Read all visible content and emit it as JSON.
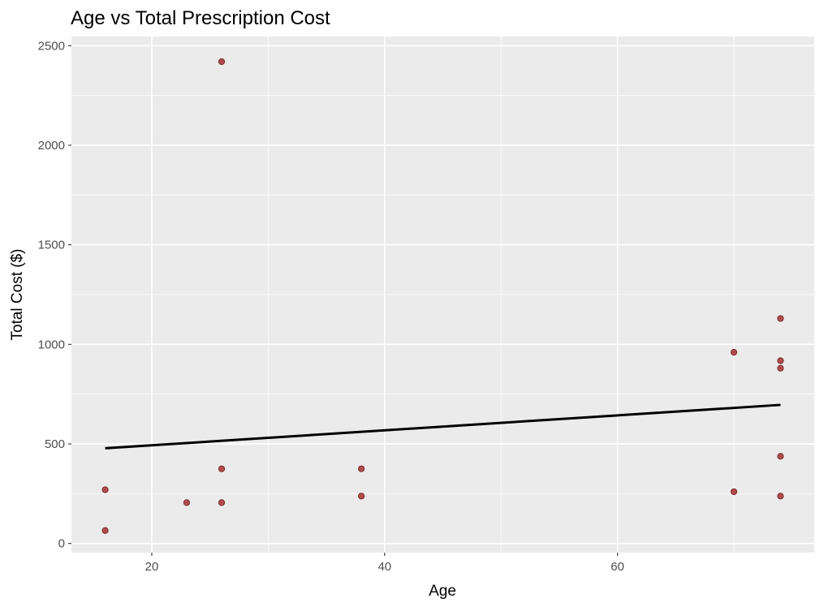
{
  "chart_data": {
    "type": "scatter",
    "title": "Age vs Total Prescription Cost",
    "xlabel": "Age",
    "ylabel": "Total Cost ($)",
    "xlim": [
      13.1,
      76.9
    ],
    "ylim": [
      -46,
      2546
    ],
    "xticks": [
      20,
      40,
      60
    ],
    "yticks": [
      0,
      500,
      1000,
      1500,
      2000,
      2500
    ],
    "grid": true,
    "points": [
      {
        "x": 16,
        "y": 65
      },
      {
        "x": 16,
        "y": 270
      },
      {
        "x": 23,
        "y": 205
      },
      {
        "x": 26,
        "y": 205
      },
      {
        "x": 26,
        "y": 375
      },
      {
        "x": 26,
        "y": 2420
      },
      {
        "x": 38,
        "y": 238
      },
      {
        "x": 38,
        "y": 375
      },
      {
        "x": 70,
        "y": 260
      },
      {
        "x": 70,
        "y": 960
      },
      {
        "x": 74,
        "y": 238
      },
      {
        "x": 74,
        "y": 438
      },
      {
        "x": 74,
        "y": 880
      },
      {
        "x": 74,
        "y": 918
      },
      {
        "x": 74,
        "y": 1130
      }
    ],
    "trend_line": {
      "x": [
        16,
        74
      ],
      "y": [
        478,
        696
      ]
    },
    "colors": {
      "panel_background": "#ebebeb",
      "grid_major": "#ffffff",
      "point_fill": "#b24c4c",
      "point_stroke": "#7a2a2a",
      "line": "#000000"
    }
  }
}
